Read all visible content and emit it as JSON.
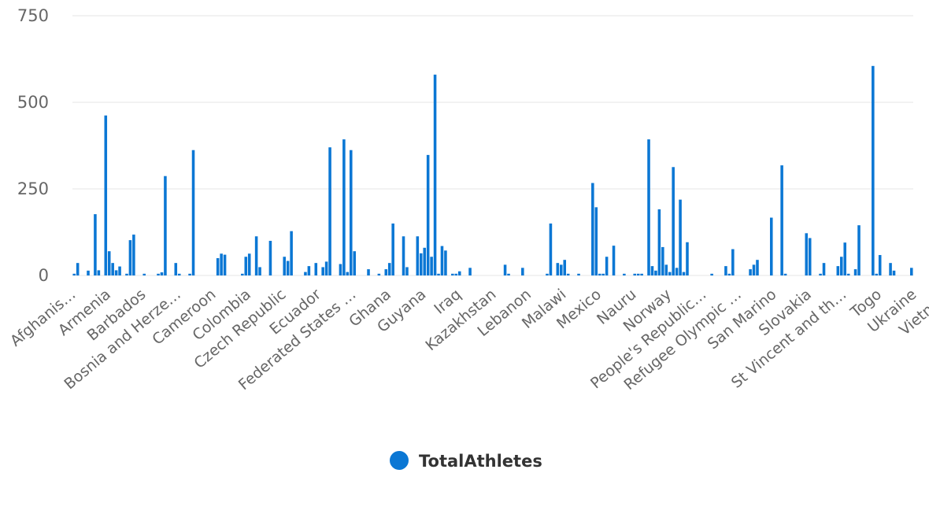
{
  "chart_data": {
    "type": "bar",
    "ylim": [
      0,
      750
    ],
    "yticks": [
      0,
      250,
      500,
      750
    ],
    "grid": true,
    "legend": {
      "position": "bottom-center",
      "label": "TotalAthletes"
    },
    "color": "#0b77d4",
    "series": [
      {
        "name": "TotalAthletes",
        "values": [
          5,
          36,
          0,
          0,
          14,
          0,
          177,
          15,
          0,
          462,
          70,
          36,
          15,
          26,
          0,
          5,
          102,
          118,
          0,
          0,
          5,
          0,
          0,
          0,
          5,
          9,
          287,
          0,
          0,
          36,
          5,
          0,
          0,
          5,
          362,
          0,
          0,
          0,
          0,
          0,
          0,
          50,
          63,
          60,
          0,
          0,
          0,
          0,
          5,
          54,
          63,
          0,
          113,
          24,
          0,
          0,
          100,
          0,
          0,
          0,
          54,
          42,
          128,
          0,
          0,
          0,
          10,
          27,
          0,
          36,
          0,
          24,
          40,
          370,
          0,
          0,
          33,
          393,
          10,
          362,
          70,
          0,
          0,
          0,
          18,
          0,
          0,
          5,
          0,
          18,
          36,
          150,
          0,
          0,
          113,
          24,
          0,
          0,
          113,
          64,
          80,
          348,
          54,
          580,
          5,
          85,
          72,
          0,
          5,
          5,
          12,
          0,
          0,
          22,
          0,
          0,
          0,
          0,
          0,
          0,
          0,
          0,
          0,
          31,
          5,
          0,
          0,
          0,
          22,
          0,
          0,
          0,
          0,
          0,
          0,
          5,
          150,
          0,
          36,
          31,
          45,
          5,
          0,
          0,
          5,
          0,
          0,
          0,
          267,
          197,
          5,
          5,
          54,
          0,
          86,
          0,
          0,
          5,
          0,
          0,
          5,
          5,
          5,
          0,
          393,
          27,
          14,
          191,
          82,
          31,
          10,
          313,
          22,
          219,
          10,
          96,
          0,
          0,
          0,
          0,
          0,
          0,
          5,
          0,
          0,
          0,
          27,
          5,
          76,
          0,
          0,
          0,
          0,
          18,
          31,
          45,
          0,
          0,
          0,
          167,
          0,
          0,
          318,
          5,
          0,
          0,
          0,
          0,
          0,
          122,
          108,
          0,
          0,
          5,
          36,
          0,
          0,
          0,
          27,
          54,
          95,
          5,
          0,
          18,
          145,
          0,
          0,
          0,
          605,
          5,
          59,
          0,
          0,
          36,
          14,
          0,
          0,
          0,
          0,
          22
        ]
      }
    ],
    "x_labels": [
      {
        "text": "Afghanis…",
        "index": 0
      },
      {
        "text": "Armenia",
        "index": 10
      },
      {
        "text": "Barbados",
        "index": 20
      },
      {
        "text": "Bosnia and Herze…",
        "index": 30
      },
      {
        "text": "Cameroon",
        "index": 40
      },
      {
        "text": "Colombia",
        "index": 50
      },
      {
        "text": "Czech Republic",
        "index": 60
      },
      {
        "text": "Ecuador",
        "index": 70
      },
      {
        "text": "Federated States …",
        "index": 80
      },
      {
        "text": "Ghana",
        "index": 90
      },
      {
        "text": "Guyana",
        "index": 100
      },
      {
        "text": "Iraq",
        "index": 110
      },
      {
        "text": "Kazakhstan",
        "index": 120
      },
      {
        "text": "Lebanon",
        "index": 130
      },
      {
        "text": "Malawi",
        "index": 140
      },
      {
        "text": "Mexico",
        "index": 150
      },
      {
        "text": "Nauru",
        "index": 160
      },
      {
        "text": "Norway",
        "index": 170
      },
      {
        "text": "People's Republic…",
        "index": 180
      },
      {
        "text": "Refugee Olympic …",
        "index": 190
      },
      {
        "text": "San Marino",
        "index": 200
      },
      {
        "text": "Slovakia",
        "index": 210
      },
      {
        "text": "St Vincent and th…",
        "index": 220
      },
      {
        "text": "Togo",
        "index": 230
      },
      {
        "text": "Ukraine",
        "index": 240
      },
      {
        "text": "Vietnam",
        "index": 250
      }
    ]
  }
}
